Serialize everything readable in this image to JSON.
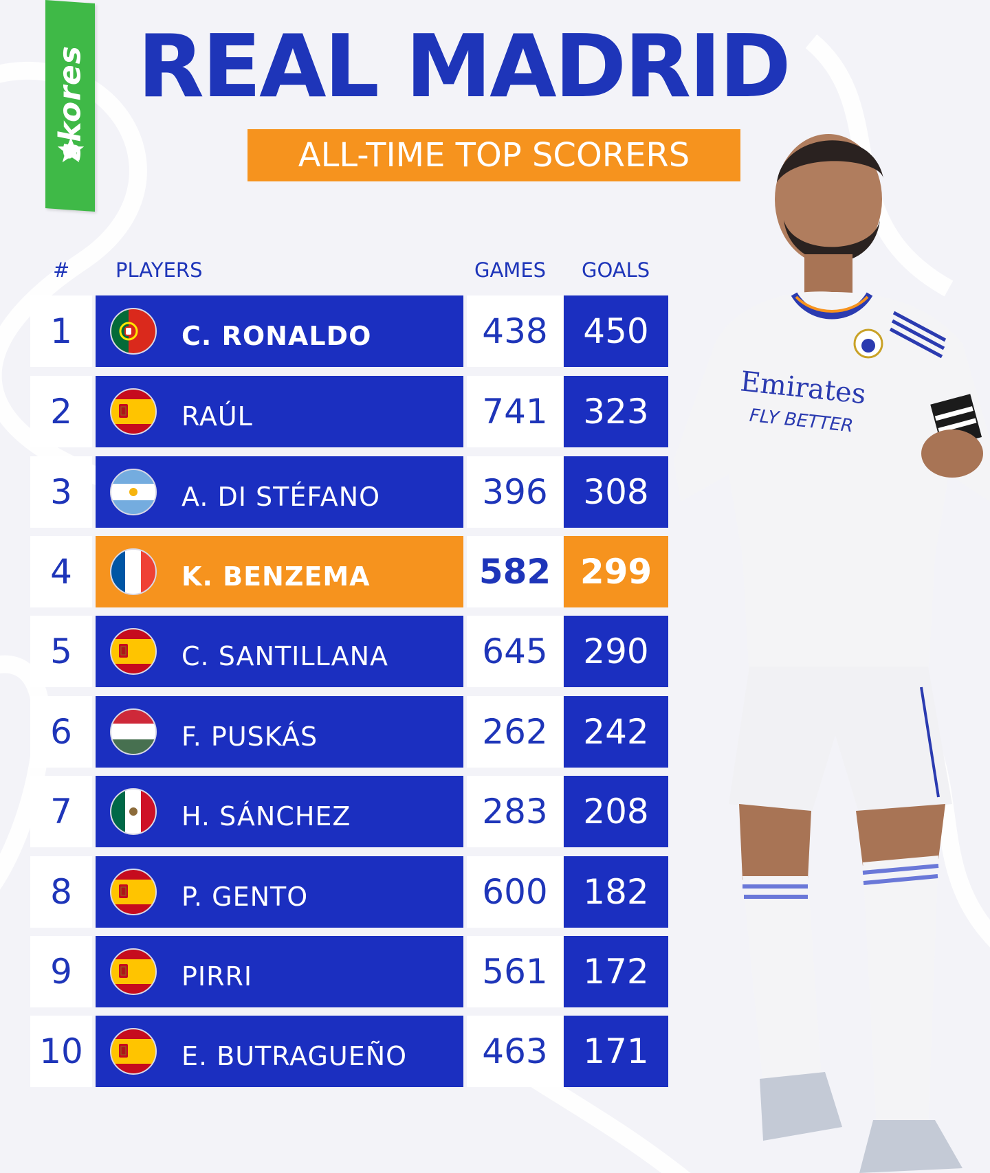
{
  "brand": {
    "name": "skores"
  },
  "header": {
    "title": "REAL MADRID",
    "subtitle": "ALL-TIME TOP SCORERS"
  },
  "table": {
    "columns": {
      "rank": "#",
      "player": "PLAYERS",
      "games": "GAMES",
      "goals": "GOALS"
    },
    "rows": [
      {
        "rank": "1",
        "name": "C. RONALDO",
        "games": "438",
        "goals": "450",
        "flag": "portugal-flag-icon"
      },
      {
        "rank": "2",
        "name": "RAÚL",
        "games": "741",
        "goals": "323",
        "flag": "spain-flag-icon"
      },
      {
        "rank": "3",
        "name": "A. DI STÉFANO",
        "games": "396",
        "goals": "308",
        "flag": "argentina-flag-icon"
      },
      {
        "rank": "4",
        "name": "K. BENZEMA",
        "games": "582",
        "goals": "299",
        "flag": "france-flag-icon"
      },
      {
        "rank": "5",
        "name": "C. SANTILLANA",
        "games": "645",
        "goals": "290",
        "flag": "spain-flag-icon"
      },
      {
        "rank": "6",
        "name": "F. PUSKÁS",
        "games": "262",
        "goals": "242",
        "flag": "hungary-flag-icon"
      },
      {
        "rank": "7",
        "name": "H. SÁNCHEZ",
        "games": "283",
        "goals": "208",
        "flag": "mexico-flag-icon"
      },
      {
        "rank": "8",
        "name": "P. GENTO",
        "games": "600",
        "goals": "182",
        "flag": "spain-flag-icon"
      },
      {
        "rank": "9",
        "name": "PIRRI",
        "games": "561",
        "goals": "172",
        "flag": "spain-flag-icon"
      },
      {
        "rank": "10",
        "name": "E. BUTRAGUEÑO",
        "games": "463",
        "goals": "171",
        "flag": "spain-flag-icon"
      }
    ]
  },
  "photo": {
    "sponsor": "Emirates",
    "sponsor_tagline": "FLY BETTER"
  },
  "colors": {
    "primary_blue": "#1b2fc0",
    "accent_orange": "#f6931e",
    "brand_green": "#3fb947",
    "background": "#f3f3f8"
  }
}
